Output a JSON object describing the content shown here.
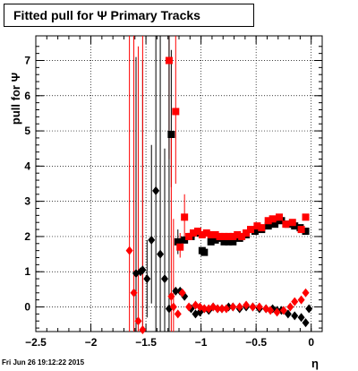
{
  "title": "Fitted pull for  Ψ   Primary Tracks",
  "footer": "Fri Jun 26 19:12:22 2015",
  "chart_data": {
    "type": "scatter",
    "xlabel": "η",
    "ylabel": "pull for  Ψ",
    "xlim": [
      -2.5,
      0.1
    ],
    "ylim": [
      -0.7,
      7.7
    ],
    "xticks": [
      -2.5,
      -2,
      -1.5,
      -1,
      -0.5,
      0
    ],
    "xtick_labels": [
      "−2.5",
      "−2",
      "−1.5",
      "−1",
      "−0.5",
      "0"
    ],
    "yticks": [
      0,
      1,
      2,
      3,
      4,
      5,
      6,
      7
    ],
    "ytick_labels": [
      "0",
      "1",
      "2",
      "3",
      "4",
      "5",
      "6",
      "7"
    ],
    "grid": true,
    "colors": {
      "black": "#000000",
      "red": "#ff0000"
    },
    "series": [
      {
        "marker": "square",
        "color": "#000000",
        "points": [
          [
            -1.27,
            4.9
          ],
          [
            -1.21,
            1.85
          ],
          [
            -1.15,
            1.9
          ],
          [
            -1.09,
            2.0
          ],
          [
            -1.03,
            2.1
          ],
          [
            -0.99,
            1.6
          ],
          [
            -0.97,
            1.55
          ],
          [
            -0.91,
            1.85
          ],
          [
            -0.87,
            1.9
          ],
          [
            -0.83,
            1.95
          ],
          [
            -0.79,
            1.85
          ],
          [
            -0.75,
            1.85
          ],
          [
            -0.71,
            1.85
          ],
          [
            -0.65,
            1.95
          ],
          [
            -0.59,
            2.05
          ],
          [
            -0.51,
            2.15
          ],
          [
            -0.45,
            2.2
          ],
          [
            -0.39,
            2.3
          ],
          [
            -0.33,
            2.35
          ],
          [
            -0.27,
            2.45
          ],
          [
            -0.21,
            2.35
          ],
          [
            -0.15,
            2.3
          ],
          [
            -0.1,
            2.25
          ],
          [
            -0.05,
            2.15
          ]
        ],
        "errors": [
          [
            -1.27,
            3.4,
            7.3
          ],
          [
            -1.21,
            1.5,
            2.2
          ]
        ]
      },
      {
        "marker": "square",
        "color": "#ff0000",
        "points": [
          [
            -1.29,
            7.0
          ],
          [
            -1.23,
            5.55
          ],
          [
            -1.19,
            1.7
          ],
          [
            -1.15,
            2.55
          ],
          [
            -1.11,
            2.0
          ],
          [
            -1.07,
            2.1
          ],
          [
            -1.03,
            2.15
          ],
          [
            -0.99,
            2.05
          ],
          [
            -0.95,
            2.1
          ],
          [
            -0.91,
            2.05
          ],
          [
            -0.87,
            2.05
          ],
          [
            -0.83,
            2.0
          ],
          [
            -0.79,
            2.0
          ],
          [
            -0.75,
            2.0
          ],
          [
            -0.71,
            2.0
          ],
          [
            -0.67,
            2.05
          ],
          [
            -0.63,
            2.0
          ],
          [
            -0.59,
            2.1
          ],
          [
            -0.55,
            2.2
          ],
          [
            -0.49,
            2.3
          ],
          [
            -0.45,
            2.25
          ],
          [
            -0.39,
            2.45
          ],
          [
            -0.35,
            2.5
          ],
          [
            -0.29,
            2.55
          ],
          [
            -0.23,
            2.35
          ],
          [
            -0.17,
            2.4
          ],
          [
            -0.09,
            2.2
          ],
          [
            -0.05,
            2.55
          ]
        ],
        "errors": [
          [
            -1.29,
            4.2,
            7.7
          ],
          [
            -1.23,
            3.5,
            7.7
          ],
          [
            -1.19,
            1.4,
            2.1
          ],
          [
            -1.15,
            2.0,
            3.2
          ]
        ]
      },
      {
        "marker": "diamond",
        "color": "#000000",
        "points": [
          [
            -1.59,
            0.95
          ],
          [
            -1.55,
            1.0
          ],
          [
            -1.53,
            1.05
          ],
          [
            -1.49,
            0.8
          ],
          [
            -1.45,
            1.9
          ],
          [
            -1.41,
            3.3
          ],
          [
            -1.37,
            1.5
          ],
          [
            -1.33,
            0.8
          ],
          [
            -1.29,
            -0.05
          ],
          [
            -1.23,
            0.45
          ],
          [
            -1.19,
            0.45
          ],
          [
            -1.15,
            0.3
          ],
          [
            -1.09,
            -0.05
          ],
          [
            -1.05,
            -0.2
          ],
          [
            -1.01,
            -0.15
          ],
          [
            -0.97,
            -0.05
          ],
          [
            -0.93,
            -0.1
          ],
          [
            -0.89,
            0.0
          ],
          [
            -0.85,
            -0.05
          ],
          [
            -0.81,
            -0.05
          ],
          [
            -0.75,
            0.0
          ],
          [
            -0.71,
            0.0
          ],
          [
            -0.65,
            -0.05
          ],
          [
            -0.59,
            0.0
          ],
          [
            -0.53,
            0.0
          ],
          [
            -0.47,
            -0.05
          ],
          [
            -0.41,
            -0.05
          ],
          [
            -0.35,
            -0.05
          ],
          [
            -0.31,
            -0.1
          ],
          [
            -0.27,
            -0.1
          ],
          [
            -0.21,
            -0.2
          ],
          [
            -0.15,
            -0.25
          ],
          [
            -0.09,
            -0.3
          ],
          [
            -0.05,
            -0.45
          ],
          [
            -0.02,
            -0.05
          ]
        ],
        "errors": [
          [
            -1.59,
            -0.7,
            7.1
          ],
          [
            -1.53,
            -0.7,
            7.0
          ],
          [
            -1.49,
            -0.3,
            1.9
          ],
          [
            -1.45,
            0.1,
            4.6
          ],
          [
            -1.41,
            -0.7,
            7.7
          ],
          [
            -1.37,
            -0.7,
            7.7
          ],
          [
            -1.33,
            -0.7,
            4.5
          ],
          [
            -1.29,
            -0.7,
            7.7
          ]
        ]
      },
      {
        "marker": "diamond",
        "color": "#ff0000",
        "points": [
          [
            -1.65,
            1.6
          ],
          [
            -1.61,
            0.4
          ],
          [
            -1.57,
            -0.4
          ],
          [
            -1.53,
            -0.65
          ],
          [
            -1.27,
            0.3
          ],
          [
            -1.25,
            0.0
          ],
          [
            -1.21,
            -0.2
          ],
          [
            -1.17,
            0.4
          ],
          [
            -1.11,
            0.0
          ],
          [
            -1.05,
            0.05
          ],
          [
            -1.01,
            0.0
          ],
          [
            -0.97,
            -0.05
          ],
          [
            -0.93,
            -0.05
          ],
          [
            -0.89,
            0.0
          ],
          [
            -0.85,
            -0.05
          ],
          [
            -0.81,
            -0.05
          ],
          [
            -0.77,
            -0.05
          ],
          [
            -0.71,
            0.0
          ],
          [
            -0.65,
            0.0
          ],
          [
            -0.59,
            0.05
          ],
          [
            -0.53,
            0.0
          ],
          [
            -0.47,
            0.0
          ],
          [
            -0.41,
            -0.05
          ],
          [
            -0.37,
            -0.1
          ],
          [
            -0.31,
            -0.15
          ],
          [
            -0.25,
            -0.1
          ],
          [
            -0.19,
            0.0
          ],
          [
            -0.15,
            0.15
          ],
          [
            -0.09,
            0.2
          ],
          [
            -0.05,
            0.4
          ]
        ],
        "errors": [
          [
            -1.65,
            -0.7,
            7.7
          ],
          [
            -1.61,
            -0.7,
            7.7
          ],
          [
            -1.57,
            -0.7,
            7.4
          ],
          [
            -1.53,
            -0.7,
            7.7
          ],
          [
            -1.27,
            -0.7,
            4.8
          ],
          [
            -1.25,
            -0.7,
            2.5
          ]
        ]
      }
    ]
  }
}
